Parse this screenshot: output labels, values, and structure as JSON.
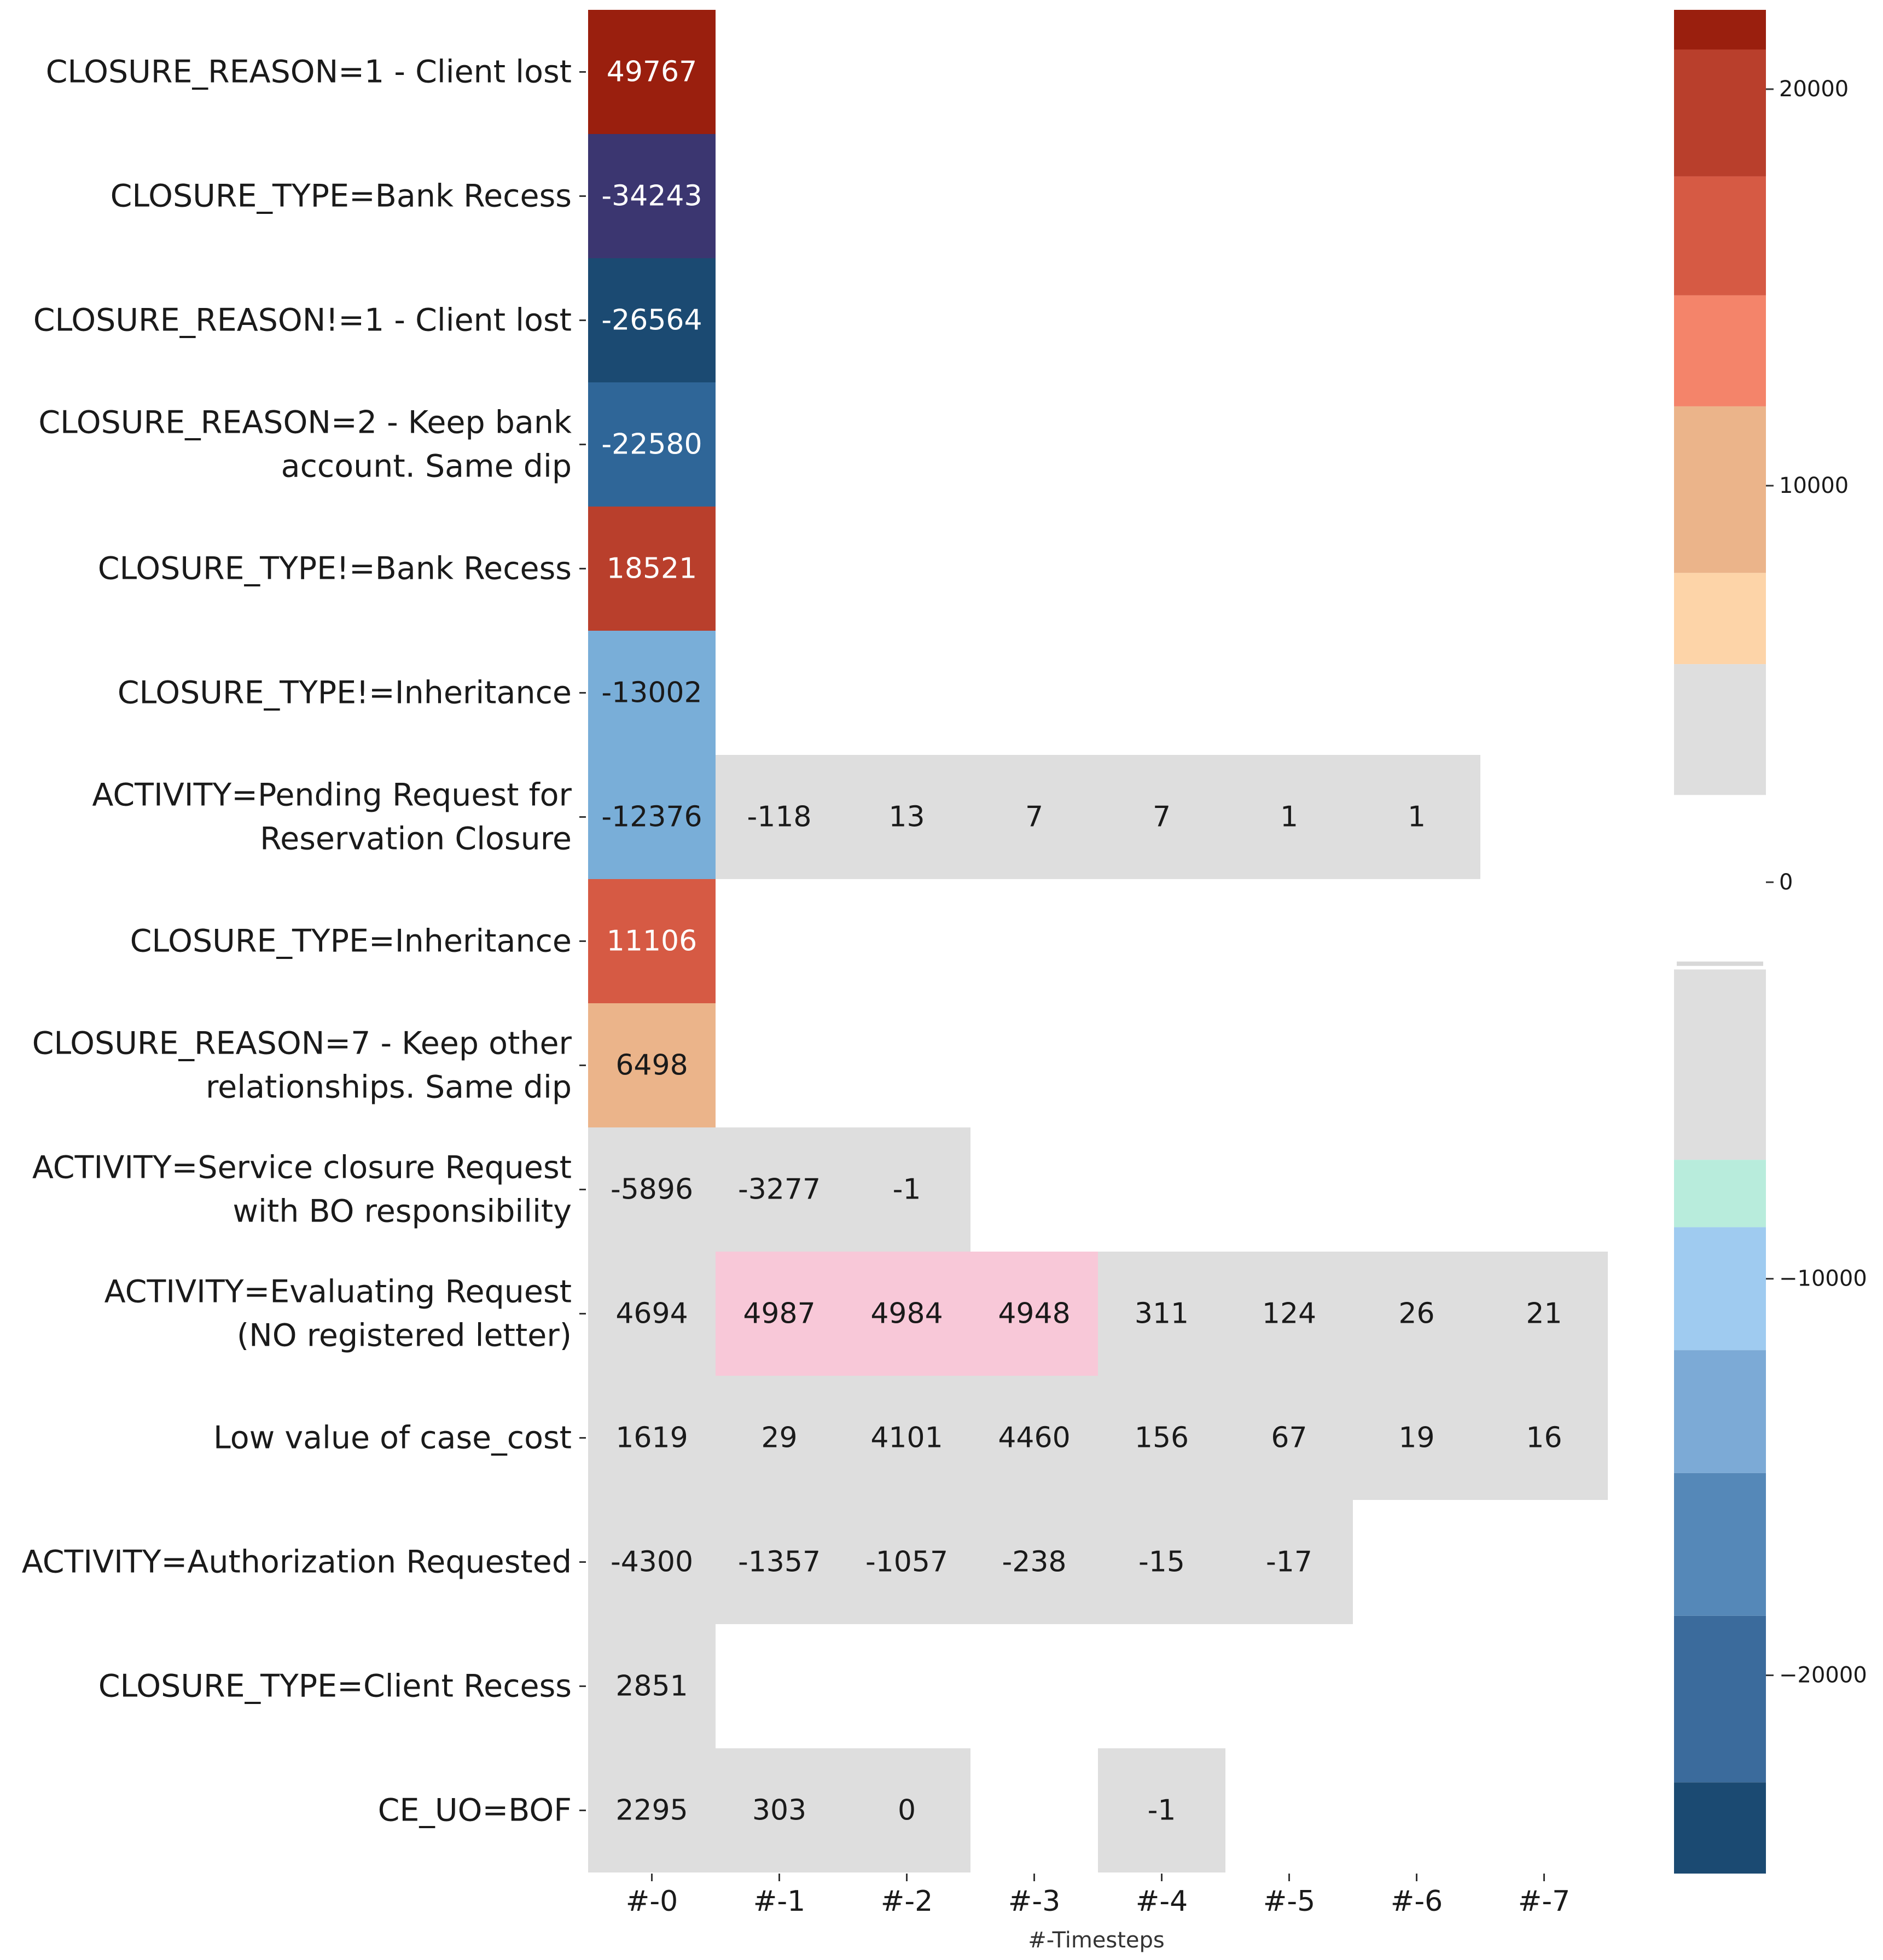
{
  "chart_data": {
    "type": "heatmap",
    "xlabel": "#-Timesteps",
    "columns": [
      "#-0",
      "#-1",
      "#-2",
      "#-3",
      "#-4",
      "#-5",
      "#-6",
      "#-7"
    ],
    "rows": [
      {
        "label": [
          "CLOSURE_REASON=1 - Client lost"
        ],
        "values": [
          49767,
          null,
          null,
          null,
          null,
          null,
          null,
          null
        ]
      },
      {
        "label": [
          "CLOSURE_TYPE=Bank Recess"
        ],
        "values": [
          -34243,
          null,
          null,
          null,
          null,
          null,
          null,
          null
        ]
      },
      {
        "label": [
          "CLOSURE_REASON!=1 - Client lost"
        ],
        "values": [
          -26564,
          null,
          null,
          null,
          null,
          null,
          null,
          null
        ]
      },
      {
        "label": [
          "CLOSURE_REASON=2 - Keep bank",
          "account. Same dip"
        ],
        "values": [
          -22580,
          null,
          null,
          null,
          null,
          null,
          null,
          null
        ]
      },
      {
        "label": [
          "CLOSURE_TYPE!=Bank Recess"
        ],
        "values": [
          18521,
          null,
          null,
          null,
          null,
          null,
          null,
          null
        ]
      },
      {
        "label": [
          "CLOSURE_TYPE!=Inheritance"
        ],
        "values": [
          -13002,
          null,
          null,
          null,
          null,
          null,
          null,
          null
        ]
      },
      {
        "label": [
          "ACTIVITY=Pending Request for",
          "Reservation Closure"
        ],
        "values": [
          -12376,
          -118,
          13,
          7,
          7,
          1,
          1,
          null
        ]
      },
      {
        "label": [
          "CLOSURE_TYPE=Inheritance"
        ],
        "values": [
          11106,
          null,
          null,
          null,
          null,
          null,
          null,
          null
        ]
      },
      {
        "label": [
          "CLOSURE_REASON=7 - Keep other",
          "relationships. Same dip"
        ],
        "values": [
          6498,
          null,
          null,
          null,
          null,
          null,
          null,
          null
        ]
      },
      {
        "label": [
          "ACTIVITY=Service closure Request",
          "with BO responsibility"
        ],
        "values": [
          -5896,
          -3277,
          -1,
          null,
          null,
          null,
          null,
          null
        ]
      },
      {
        "label": [
          "ACTIVITY=Evaluating Request",
          "(NO registered letter)"
        ],
        "values": [
          4694,
          4987,
          4984,
          4948,
          311,
          124,
          26,
          21
        ]
      },
      {
        "label": [
          "Low value of case_cost"
        ],
        "values": [
          1619,
          29,
          4101,
          4460,
          156,
          67,
          19,
          16
        ]
      },
      {
        "label": [
          "ACTIVITY=Authorization Requested"
        ],
        "values": [
          -4300,
          -1357,
          -1057,
          -238,
          -15,
          -17,
          null,
          null
        ]
      },
      {
        "label": [
          "CLOSURE_TYPE=Client Recess"
        ],
        "values": [
          2851,
          null,
          null,
          null,
          null,
          null,
          null,
          null
        ]
      },
      {
        "label": [
          "CE_UO=BOF"
        ],
        "values": [
          2295,
          303,
          0,
          null,
          -1,
          null,
          null,
          null
        ]
      }
    ],
    "colorbar": {
      "ticks": [
        20000,
        10000,
        0,
        -10000,
        -20000
      ],
      "tick_labels": [
        "20000",
        "10000",
        "0",
        "−10000",
        "−20000"
      ],
      "range": [
        -25000,
        22000
      ]
    },
    "color_scale": {
      "positive": [
        {
          "min": 20000,
          "color": "#9a1f0e"
        },
        {
          "min": 15000,
          "color": "#b93f2c"
        },
        {
          "min": 10000,
          "color": "#d65a44"
        },
        {
          "min": 8000,
          "color": "#f4846a"
        },
        {
          "min": 5500,
          "color": "#ebb48a"
        },
        {
          "min": 5000,
          "color": "#fdd4a8"
        },
        {
          "min": 4900,
          "color": "#f8c8d8"
        },
        {
          "min": 0,
          "color": "#dedede"
        }
      ],
      "negative": [
        {
          "max": -30000,
          "color": "#3b3670"
        },
        {
          "max": -25000,
          "color": "#1b4a72"
        },
        {
          "max": -20000,
          "color": "#2f6698"
        },
        {
          "max": -12000,
          "color": "#79aed8"
        },
        {
          "max": 0,
          "color": "#dedede"
        }
      ]
    },
    "colorbar_bands": [
      {
        "from": 22000,
        "to": 21000,
        "color": "#9a1f0e"
      },
      {
        "from": 21000,
        "to": 17800,
        "color": "#b93f2c"
      },
      {
        "from": 17800,
        "to": 14800,
        "color": "#d65a44"
      },
      {
        "from": 14800,
        "to": 12000,
        "color": "#f4846a"
      },
      {
        "from": 12000,
        "to": 7800,
        "color": "#ebb48a"
      },
      {
        "from": 7800,
        "to": 5500,
        "color": "#fdd4a8"
      },
      {
        "from": 5500,
        "to": 2200,
        "color": "#dedede"
      },
      {
        "from": -2200,
        "to": -7000,
        "color": "#dedede"
      },
      {
        "from": -7000,
        "to": -8700,
        "color": "#b8ecdc"
      },
      {
        "from": -8700,
        "to": -11800,
        "color": "#9fcbf0"
      },
      {
        "from": -11800,
        "to": -14900,
        "color": "#7caad6"
      },
      {
        "from": -14900,
        "to": -18500,
        "color": "#5588b8"
      },
      {
        "from": -18500,
        "to": -22700,
        "color": "#3b6b9c"
      },
      {
        "from": -22700,
        "to": -25000,
        "color": "#1b4a72"
      }
    ]
  }
}
